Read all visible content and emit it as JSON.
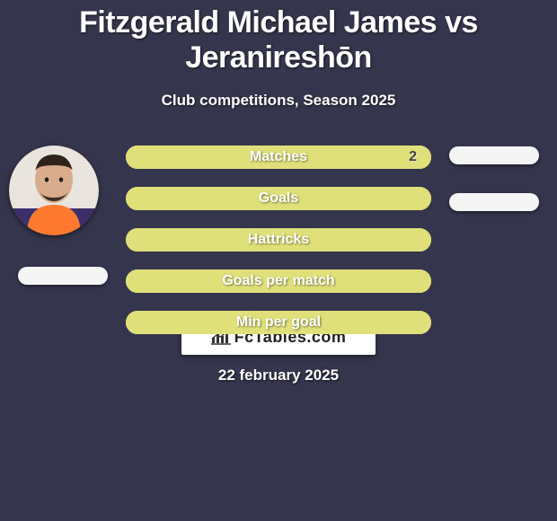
{
  "title": "Fitzgerald Michael James vs Jeranireshōn",
  "subtitle": "Club competitions, Season 2025",
  "date": "22 february 2025",
  "brand": "FcTables.com",
  "background_color": "#35354d",
  "avatar": {
    "present_left": true,
    "present_right": false
  },
  "side_pills": {
    "color": "#f5f5f5",
    "left": true,
    "right_top": true,
    "right_second": true
  },
  "bars": [
    {
      "label": "Matches",
      "fill_color": "#dfe079",
      "border_color": "#c7c85f",
      "fill_pct": 100,
      "value": "2"
    },
    {
      "label": "Goals",
      "fill_color": "#dfe079",
      "border_color": "#c7c85f",
      "fill_pct": 100,
      "value": ""
    },
    {
      "label": "Hattricks",
      "fill_color": "#dfe079",
      "border_color": "#c7c85f",
      "fill_pct": 100,
      "value": ""
    },
    {
      "label": "Goals per match",
      "fill_color": "#dfe079",
      "border_color": "#c7c85f",
      "fill_pct": 100,
      "value": ""
    },
    {
      "label": "Min per goal",
      "fill_color": "#dfe079",
      "border_color": "#c7c85f",
      "fill_pct": 100,
      "value": ""
    }
  ],
  "typography": {
    "title_fontsize": 34,
    "subtitle_fontsize": 17,
    "bar_label_fontsize": 16,
    "date_fontsize": 17
  }
}
